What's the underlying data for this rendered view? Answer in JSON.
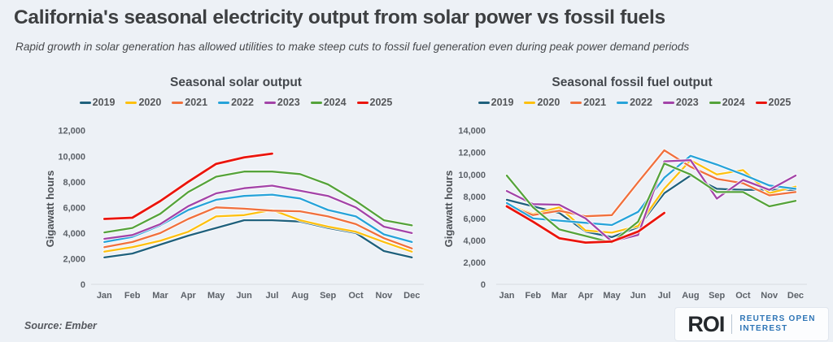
{
  "header": {
    "title": "California's seasonal electricity output from solar power vs fossil fuels",
    "subtitle": "Rapid growth in solar generation has allowed utilities to make steep cuts to fossil fuel generation even during peak power demand periods"
  },
  "footer": {
    "source": "Source: Ember",
    "logo": {
      "brand": "ROI",
      "line1": "REUTERS OPEN",
      "line2": "INTEREST"
    }
  },
  "colors": {
    "background": "#edf1f6",
    "axis_line": "#d7dbe0",
    "reuters_blue": "#2e75b6"
  },
  "chart_data": [
    {
      "type": "line",
      "title": "Seasonal solar output",
      "xlabel": "",
      "ylabel": "Gigawatt hours",
      "categories": [
        "Jan",
        "Feb",
        "Mar",
        "Apr",
        "May",
        "Jun",
        "Jul",
        "Aug",
        "Sep",
        "Oct",
        "Nov",
        "Dec"
      ],
      "ylim": [
        0,
        12000
      ],
      "ytick_step": 2000,
      "grid": false,
      "legend_position": "top",
      "series": [
        {
          "name": "2019",
          "color": "#20617d",
          "values": [
            2100,
            2400,
            3100,
            3800,
            4400,
            5000,
            5000,
            4900,
            4400,
            4000,
            2600,
            2100
          ]
        },
        {
          "name": "2020",
          "color": "#fdc010",
          "values": [
            2550,
            2900,
            3400,
            4100,
            5300,
            5400,
            5800,
            5000,
            4500,
            4100,
            3300,
            2550
          ]
        },
        {
          "name": "2021",
          "color": "#f0703d",
          "values": [
            2900,
            3300,
            4000,
            5100,
            6000,
            5900,
            5750,
            5700,
            5300,
            4700,
            3600,
            2800
          ]
        },
        {
          "name": "2022",
          "color": "#27a3d9",
          "values": [
            3300,
            3700,
            4600,
            5800,
            6600,
            6900,
            7000,
            6700,
            5800,
            5300,
            3900,
            3300
          ]
        },
        {
          "name": "2023",
          "color": "#a344a8",
          "values": [
            3550,
            3850,
            4700,
            6100,
            7100,
            7500,
            7700,
            7300,
            6900,
            6000,
            4500,
            4000
          ]
        },
        {
          "name": "2024",
          "color": "#55a33b",
          "values": [
            4050,
            4400,
            5500,
            7200,
            8400,
            8800,
            8800,
            8600,
            7800,
            6500,
            5000,
            4600
          ]
        },
        {
          "name": "2025",
          "color": "#ea150d",
          "values": [
            5100,
            5200,
            6500,
            8000,
            9400,
            9900,
            10200
          ]
        }
      ]
    },
    {
      "type": "line",
      "title": "Seasonal fossil fuel output",
      "xlabel": "",
      "ylabel": "Gigawatt hours",
      "categories": [
        "Jan",
        "Feb",
        "Mar",
        "Apr",
        "May",
        "Jun",
        "Jul",
        "Aug",
        "Sep",
        "Oct",
        "Nov",
        "Dec"
      ],
      "ylim": [
        0,
        14000
      ],
      "ytick_step": 2000,
      "grid": false,
      "legend_position": "top",
      "series": [
        {
          "name": "2019",
          "color": "#20617d",
          "values": [
            7700,
            7100,
            6500,
            4800,
            4300,
            5200,
            8300,
            9900,
            8700,
            8600,
            8600,
            8600
          ]
        },
        {
          "name": "2020",
          "color": "#fdc010",
          "values": [
            7300,
            6400,
            7000,
            4900,
            4700,
            5300,
            8700,
            11300,
            10000,
            10400,
            8300,
            8900
          ]
        },
        {
          "name": "2021",
          "color": "#f0703d",
          "values": [
            7200,
            6300,
            6700,
            6200,
            6300,
            9300,
            12200,
            10700,
            9600,
            9200,
            8100,
            8400
          ]
        },
        {
          "name": "2022",
          "color": "#27a3d9",
          "values": [
            7400,
            6000,
            5800,
            5600,
            5400,
            6600,
            9700,
            11700,
            10900,
            10000,
            9000,
            8700
          ]
        },
        {
          "name": "2023",
          "color": "#a344a8",
          "values": [
            8500,
            7300,
            7250,
            6000,
            3900,
            4500,
            11200,
            11300,
            7800,
            9500,
            8600,
            9900
          ]
        },
        {
          "name": "2024",
          "color": "#55a33b",
          "values": [
            9900,
            7000,
            5000,
            4400,
            3800,
            5700,
            11000,
            10000,
            8400,
            8400,
            7100,
            7600
          ]
        },
        {
          "name": "2025",
          "color": "#ea150d",
          "values": [
            7100,
            5700,
            4200,
            3800,
            3900,
            4800,
            6500
          ]
        }
      ]
    }
  ]
}
